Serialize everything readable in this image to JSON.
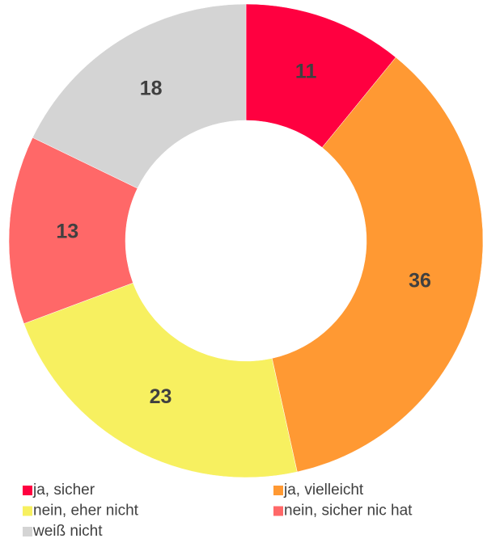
{
  "chart_data": {
    "type": "donut",
    "categories": [
      "ja, sicher",
      "ja, vielleicht",
      "nein, eher nicht",
      "nein, sicher nic hat",
      "weiß nicht"
    ],
    "values": [
      11,
      36,
      23,
      13,
      18
    ],
    "colors": [
      "#ff0040",
      "#ff9933",
      "#f7f060",
      "#ff6868",
      "#d4d4d4"
    ],
    "legend": "bottom"
  }
}
